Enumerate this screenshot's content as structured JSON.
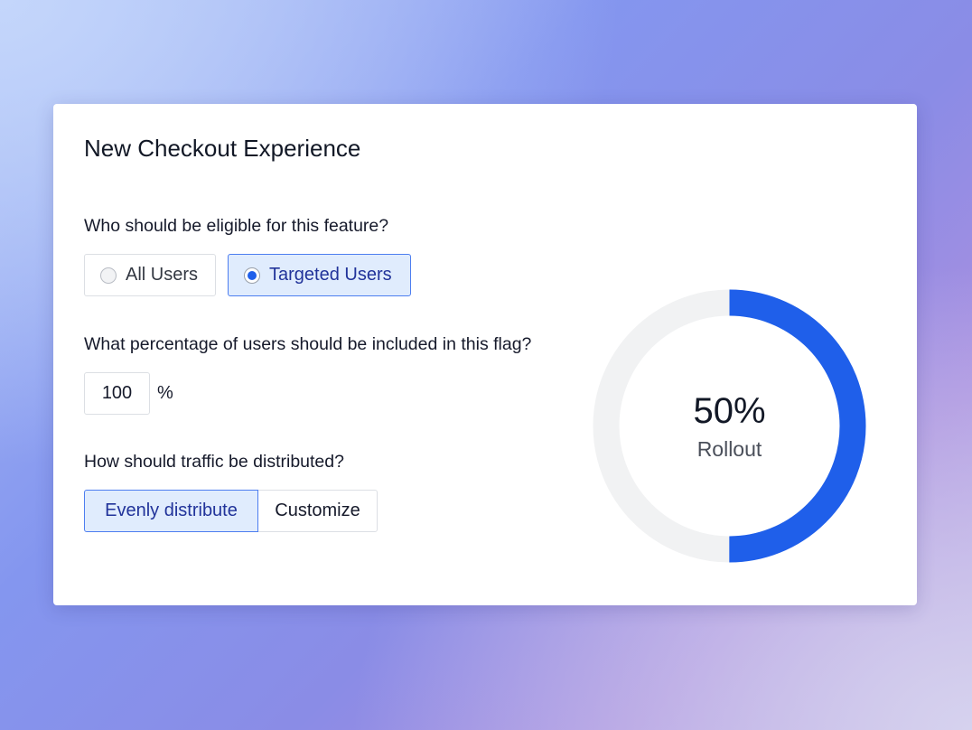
{
  "card": {
    "title": "New Checkout Experience"
  },
  "eligibility": {
    "question": "Who should be eligible for this feature?",
    "options": [
      {
        "label": "All Users",
        "selected": false
      },
      {
        "label": "Targeted Users",
        "selected": true
      }
    ]
  },
  "percentage": {
    "question": "What percentage of users should be included in this flag?",
    "value": "100",
    "unit": "%"
  },
  "distribution": {
    "question": "How should traffic be distributed?",
    "options": [
      {
        "label": "Evenly distribute",
        "selected": true
      },
      {
        "label": "Customize",
        "selected": false
      }
    ]
  },
  "rollout": {
    "value_label": "50%",
    "label": "Rollout",
    "fraction": 0.5,
    "fill_color": "#1f5fea",
    "track_color": "#f1f2f3"
  }
}
